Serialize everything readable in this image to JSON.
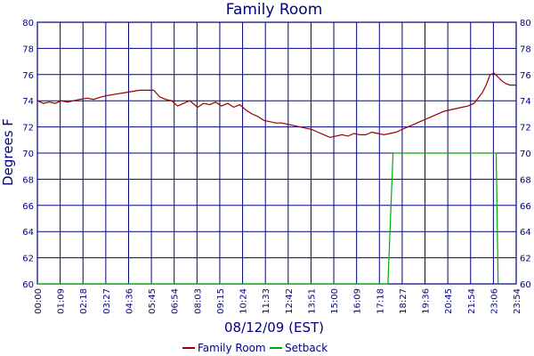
{
  "chart_data": {
    "type": "line",
    "title": "Family Room",
    "xlabel": "08/12/09 (EST)",
    "ylabel": "Degrees F",
    "ylim": [
      60,
      80
    ],
    "yticks": [
      60,
      62,
      64,
      66,
      68,
      70,
      72,
      74,
      76,
      78,
      80
    ],
    "xlim_hours": [
      0,
      23.9
    ],
    "x_tick_labels": [
      "00:00",
      "01:09",
      "02:18",
      "03:27",
      "04:36",
      "05:45",
      "06:54",
      "08:03",
      "09:15",
      "10:24",
      "11:33",
      "12:42",
      "13:51",
      "15:00",
      "16:09",
      "17:18",
      "18:27",
      "19:36",
      "20:45",
      "21:54",
      "23:06",
      "23:54"
    ],
    "grid": true,
    "legend_position": "bottom-center",
    "colors": {
      "family_room": "#990000",
      "setback": "#00aa00",
      "grid": "#000080",
      "text": "#000080"
    },
    "series": [
      {
        "name": "Family Room",
        "color": "#990000",
        "x_hours": [
          0.0,
          0.3,
          0.6,
          0.9,
          1.2,
          1.5,
          1.8,
          2.1,
          2.5,
          2.8,
          3.2,
          3.5,
          3.9,
          4.3,
          4.7,
          5.1,
          5.5,
          5.8,
          6.1,
          6.4,
          6.7,
          7.0,
          7.3,
          7.6,
          8.0,
          8.3,
          8.6,
          8.9,
          9.2,
          9.5,
          9.8,
          10.1,
          10.4,
          10.7,
          11.0,
          11.3,
          11.6,
          11.9,
          12.2,
          12.5,
          12.8,
          13.1,
          13.4,
          13.7,
          14.0,
          14.3,
          14.6,
          14.9,
          15.2,
          15.5,
          15.8,
          16.1,
          16.4,
          16.7,
          17.0,
          17.3,
          17.6,
          17.9,
          18.2,
          18.5,
          18.8,
          19.1,
          19.4,
          19.7,
          20.0,
          20.3,
          20.6,
          20.9,
          21.2,
          21.5,
          21.8,
          22.0,
          22.2,
          22.4,
          22.6,
          22.8,
          23.0,
          23.2,
          23.4,
          23.6,
          23.9
        ],
        "values": [
          74.0,
          73.8,
          73.9,
          73.8,
          74.0,
          73.9,
          74.0,
          74.1,
          74.2,
          74.1,
          74.3,
          74.4,
          74.5,
          74.6,
          74.7,
          74.8,
          74.8,
          74.8,
          74.3,
          74.1,
          74.0,
          73.6,
          73.8,
          74.0,
          73.5,
          73.8,
          73.7,
          73.9,
          73.6,
          73.8,
          73.5,
          73.7,
          73.3,
          73.0,
          72.8,
          72.5,
          72.4,
          72.3,
          72.3,
          72.2,
          72.1,
          72.0,
          71.9,
          71.8,
          71.6,
          71.4,
          71.2,
          71.3,
          71.4,
          71.3,
          71.5,
          71.4,
          71.4,
          71.6,
          71.5,
          71.4,
          71.5,
          71.6,
          71.8,
          72.0,
          72.2,
          72.4,
          72.6,
          72.8,
          73.0,
          73.2,
          73.3,
          73.4,
          73.5,
          73.6,
          73.8,
          74.2,
          74.6,
          75.2,
          76.0,
          76.1,
          75.8,
          75.5,
          75.3,
          75.2,
          75.2
        ]
      },
      {
        "name": "Setback",
        "color": "#00aa00",
        "x_hours": [
          0.0,
          17.5,
          17.75,
          22.9,
          23.0
        ],
        "values": [
          60,
          60,
          70,
          70,
          60
        ]
      }
    ]
  }
}
